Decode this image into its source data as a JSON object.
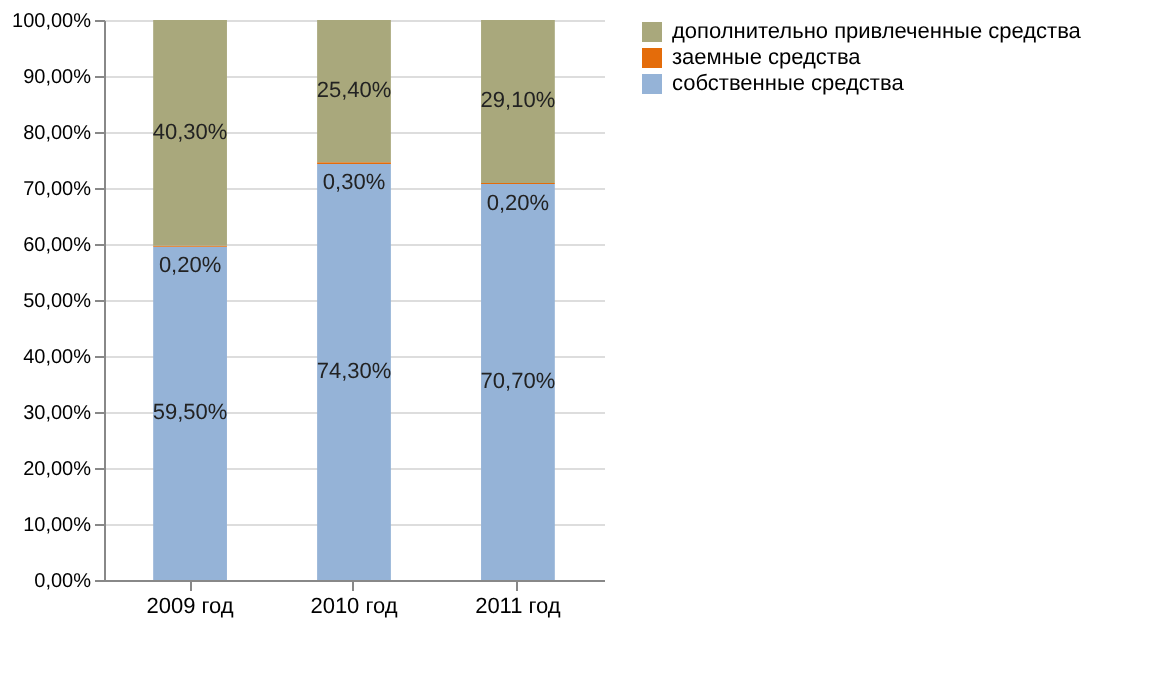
{
  "chart_data": {
    "type": "bar",
    "stacked": true,
    "categories": [
      "2009 год",
      "2010 год",
      "2011 год"
    ],
    "series": [
      {
        "name": "собственные  средства",
        "color": "#95b3d7",
        "values": [
          59.5,
          74.3,
          70.7
        ],
        "value_labels": [
          "59,50%",
          "74,30%",
          "70,70%"
        ]
      },
      {
        "name": "заемные  средства",
        "color": "#e46c0a",
        "values": [
          0.2,
          0.3,
          0.2
        ],
        "value_labels": [
          "0,20%",
          "0,30%",
          "0,20%"
        ]
      },
      {
        "name": "дополнительно привлеченные средства",
        "color": "#a9a87c",
        "values": [
          40.3,
          25.4,
          29.1
        ],
        "value_labels": [
          "40,30%",
          "25,40%",
          "29,10%"
        ]
      }
    ],
    "ylim": [
      0,
      100
    ],
    "yticks": [
      {
        "value": 0,
        "label": "0,00%"
      },
      {
        "value": 10,
        "label": "10,00%"
      },
      {
        "value": 20,
        "label": "20,00%"
      },
      {
        "value": 30,
        "label": "30,00%"
      },
      {
        "value": 40,
        "label": "40,00%"
      },
      {
        "value": 50,
        "label": "50,00%"
      },
      {
        "value": 60,
        "label": "60,00%"
      },
      {
        "value": 70,
        "label": "70,00%"
      },
      {
        "value": 80,
        "label": "80,00%"
      },
      {
        "value": 90,
        "label": "90,00%"
      },
      {
        "value": 100,
        "label": "100,00%"
      }
    ],
    "grid": "y",
    "legend": "right"
  }
}
